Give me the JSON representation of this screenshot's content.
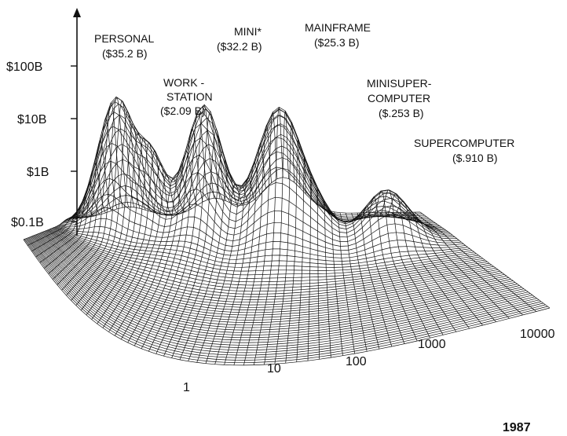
{
  "chart_data": {
    "type": "surface",
    "title": "",
    "z_ticks": [
      "$100B",
      "$10B",
      "$1B",
      "$0.1B"
    ],
    "z_tick_values": [
      100,
      10,
      1,
      0.1
    ],
    "z_scale": "log",
    "x_ticks": [
      "1",
      "10",
      "100",
      "1000",
      "10000"
    ],
    "x_scale": "log",
    "year": "1987",
    "peaks": [
      {
        "name": "PERSONAL",
        "value_label": "($35.2 B)",
        "value_billions": 35.2
      },
      {
        "name": "WORK -",
        "name2": "STATION",
        "value_label": "($2.09 B)",
        "value_billions": 2.09
      },
      {
        "name": "MINI*",
        "value_label": "($32.2 B)",
        "value_billions": 32.2
      },
      {
        "name": "MAINFRAME",
        "value_label": "($25.3 B)",
        "value_billions": 25.3
      },
      {
        "name": "MINISUPER-",
        "name2": "COMPUTER",
        "value_label": "($.253 B)",
        "value_billions": 0.253
      },
      {
        "name": "SUPERCOMPUTER",
        "value_label": "($.910 B)",
        "value_billions": 0.91
      }
    ],
    "grid": true,
    "legend": "none"
  }
}
